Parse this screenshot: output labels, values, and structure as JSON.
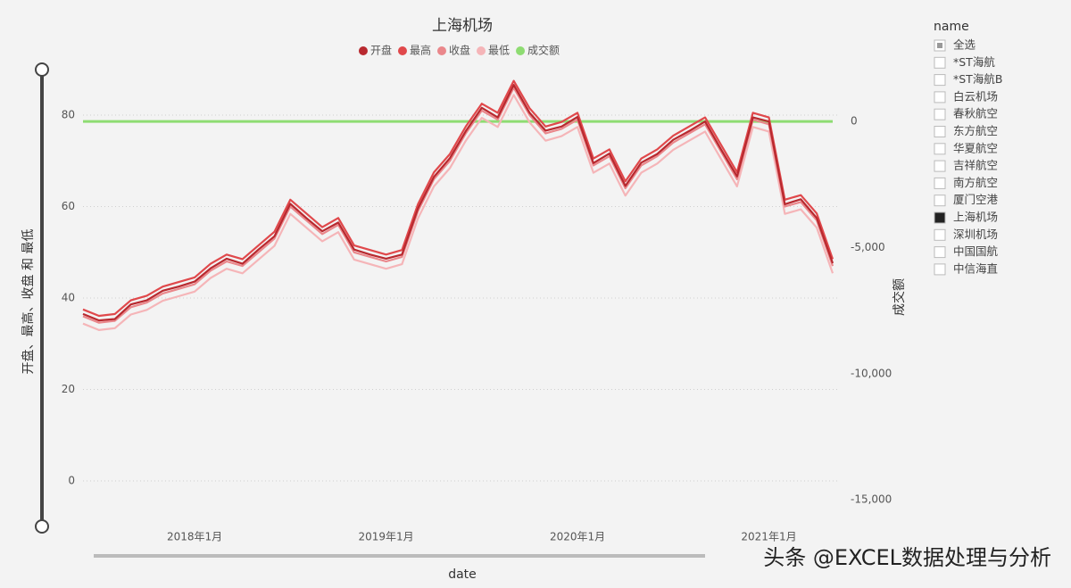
{
  "chart_data": {
    "type": "line",
    "title": "上海机场",
    "x_label": "date",
    "y_label": "开盘、最高、收盘 和 最低",
    "y2_label": "成交额",
    "x": [
      "2017-06",
      "2017-07",
      "2017-08",
      "2017-09",
      "2017-10",
      "2017-11",
      "2017-12",
      "2018-01",
      "2018-02",
      "2018-03",
      "2018-04",
      "2018-05",
      "2018-06",
      "2018-07",
      "2018-08",
      "2018-09",
      "2018-10",
      "2018-11",
      "2018-12",
      "2019-01",
      "2019-02",
      "2019-03",
      "2019-04",
      "2019-05",
      "2019-06",
      "2019-07",
      "2019-08",
      "2019-09",
      "2019-10",
      "2019-11",
      "2019-12",
      "2020-01",
      "2020-02",
      "2020-03",
      "2020-04",
      "2020-05",
      "2020-06",
      "2020-07",
      "2020-08",
      "2020-09",
      "2020-10",
      "2020-11",
      "2020-12",
      "2021-01",
      "2021-02",
      "2021-03",
      "2021-04",
      "2021-05"
    ],
    "xticks": [
      {
        "value": "2018-01",
        "label": "2018年1月"
      },
      {
        "value": "2019-01",
        "label": "2019年1月"
      },
      {
        "value": "2020-01",
        "label": "2020年1月"
      },
      {
        "value": "2021-01",
        "label": "2021年1月"
      }
    ],
    "ylim": [
      -8,
      88
    ],
    "yticks": [
      0,
      20,
      40,
      60,
      80
    ],
    "y2lim": [
      -15700,
      1700
    ],
    "y2ticks": [
      0,
      {
        "value": -5000,
        "label": "-5,000"
      },
      {
        "value": -10000,
        "label": "-10,000"
      },
      {
        "value": -15000,
        "label": "-15,000"
      }
    ],
    "grid": true,
    "series": [
      {
        "name": "开盘",
        "color": "#b8292f",
        "values": [
          36.5,
          35.1,
          35.4,
          38.6,
          39.5,
          41.6,
          42.5,
          43.6,
          46.5,
          48.6,
          47.5,
          50.6,
          53.5,
          60.6,
          57.5,
          54.6,
          56.5,
          50.6,
          49.5,
          48.6,
          49.5,
          59.6,
          66.5,
          70.6,
          76.5,
          81.6,
          79.5,
          86.6,
          80.5,
          76.6,
          77.5,
          79.6,
          69.5,
          71.6,
          64.5,
          69.6,
          71.5,
          74.6,
          76.5,
          78.6,
          72.5,
          66.6,
          79.5,
          78.6,
          60.5,
          61.6,
          57.5,
          47.6
        ]
      },
      {
        "name": "最高",
        "color": "#e0484b",
        "values": [
          37.5,
          36.1,
          36.5,
          39.5,
          40.5,
          42.5,
          43.5,
          44.5,
          47.5,
          49.5,
          48.5,
          51.5,
          54.5,
          61.5,
          58.5,
          55.5,
          57.5,
          51.5,
          50.5,
          49.5,
          50.5,
          60.5,
          67.5,
          71.5,
          77.5,
          82.5,
          80.5,
          87.5,
          81.5,
          77.5,
          78.5,
          80.5,
          70.5,
          72.5,
          65.5,
          70.5,
          72.5,
          75.5,
          77.5,
          79.5,
          73.5,
          67.5,
          80.5,
          79.5,
          61.5,
          62.5,
          58.5,
          48.5
        ]
      },
      {
        "name": "收盘",
        "color": "#ea878b",
        "values": [
          36,
          34.6,
          35,
          38,
          39,
          41,
          42,
          43,
          46,
          48,
          47,
          50,
          53,
          60,
          57,
          54,
          56,
          50,
          49,
          48,
          49,
          59,
          66,
          70,
          76,
          81,
          79,
          86,
          80,
          76,
          77,
          79,
          69,
          71,
          64,
          69,
          71,
          74,
          76,
          78,
          72,
          66,
          79,
          78,
          60,
          61,
          57,
          47
        ]
      },
      {
        "name": "最低",
        "color": "#f5b5b8",
        "values": [
          34.4,
          33,
          33.4,
          36.4,
          37.4,
          39.4,
          40.4,
          41.4,
          44.4,
          46.4,
          45.4,
          48.4,
          51.4,
          58.4,
          55.4,
          52.4,
          54.4,
          48.4,
          47.4,
          46.4,
          47.4,
          57.4,
          64.4,
          68.4,
          74.4,
          79.4,
          77.4,
          84.4,
          78.4,
          74.4,
          75.4,
          77.4,
          67.4,
          69.4,
          62.4,
          67.4,
          69.4,
          72.4,
          74.4,
          76.4,
          70.4,
          64.4,
          77.4,
          76.4,
          58.4,
          59.4,
          55.4,
          45.4
        ]
      },
      {
        "name": "成交额",
        "color": "#8edc72",
        "axis": "y2",
        "values": [
          0,
          0,
          0,
          0,
          0,
          0,
          0,
          0,
          0,
          0,
          0,
          0,
          0,
          0,
          0,
          0,
          0,
          0,
          0,
          0,
          0,
          0,
          0,
          0,
          0,
          0,
          0,
          0,
          0,
          0,
          0,
          0,
          0,
          0,
          0,
          0,
          0,
          0,
          0,
          0,
          0,
          0,
          0,
          0,
          0,
          0,
          0,
          0
        ]
      }
    ]
  },
  "slicer": {
    "title": "name",
    "items": [
      {
        "label": "全选",
        "state": "partial"
      },
      {
        "label": "*ST海航",
        "state": "unchecked"
      },
      {
        "label": "*ST海航B",
        "state": "unchecked"
      },
      {
        "label": "白云机场",
        "state": "unchecked"
      },
      {
        "label": "春秋航空",
        "state": "unchecked"
      },
      {
        "label": "东方航空",
        "state": "unchecked"
      },
      {
        "label": "华夏航空",
        "state": "unchecked"
      },
      {
        "label": "吉祥航空",
        "state": "unchecked"
      },
      {
        "label": "南方航空",
        "state": "unchecked"
      },
      {
        "label": "厦门空港",
        "state": "unchecked"
      },
      {
        "label": "上海机场",
        "state": "checked"
      },
      {
        "label": "深圳机场",
        "state": "unchecked"
      },
      {
        "label": "中国国航",
        "state": "unchecked"
      },
      {
        "label": "中信海直",
        "state": "unchecked"
      }
    ]
  },
  "watermark": "头条 @EXCEL数据处理与分析"
}
